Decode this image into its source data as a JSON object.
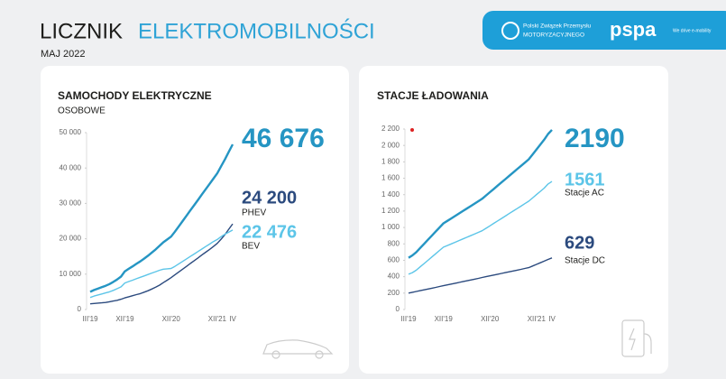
{
  "header": {
    "title_1": "LICZNIK",
    "title_2": "ELEKTROMOBILNOŚCI",
    "subtitle": "MAJ 2022",
    "logo_1_line_1": "Polski Związek Przemysłu",
    "logo_1_line_2": "MOTORYZACYJNEGO",
    "logo_2": "pspa",
    "logo_2_tagline": "We drive e-mobility"
  },
  "chart_data": [
    {
      "type": "line",
      "title": "SAMOCHODY ELEKTRYCZNE",
      "subtitle": "OSOBOWE",
      "categories": [
        "III'19",
        null,
        null,
        null,
        null,
        null,
        null,
        null,
        null,
        "XII'19",
        null,
        null,
        null,
        null,
        null,
        null,
        null,
        null,
        null,
        null,
        null,
        "XII'20",
        null,
        null,
        null,
        null,
        null,
        null,
        null,
        null,
        null,
        null,
        null,
        "XII'21",
        null,
        null,
        null,
        "IV"
      ],
      "ylim": [
        0,
        50000
      ],
      "yticks": [
        0,
        {
          "value": 10000,
          "label": "10 000"
        },
        {
          "value": 20000,
          "label": "20 000"
        },
        {
          "value": 30000,
          "label": "30 000"
        },
        {
          "value": 40000,
          "label": "40 000"
        },
        {
          "value": 50000,
          "label": "50 000"
        }
      ],
      "grid": false,
      "series": [
        {
          "color": "#2595c3",
          "end_label": "46 676",
          "values": [
            5000,
            5500,
            5900,
            6300,
            6700,
            7200,
            7800,
            8500,
            9300,
            10800,
            11500,
            12200,
            12900,
            13600,
            14400,
            15200,
            16100,
            17000,
            18000,
            19000,
            19800,
            20600,
            22000,
            23500,
            25000,
            26500,
            28000,
            29500,
            31000,
            32500,
            34000,
            35500,
            37000,
            38500,
            40500,
            42500,
            44600,
            46676
          ]
        },
        {
          "name": "PHEV",
          "color": "#2b4a7e",
          "end_label": "24 200",
          "values": [
            1600,
            1700,
            1800,
            1900,
            2000,
            2200,
            2400,
            2600,
            2900,
            3300,
            3600,
            3900,
            4200,
            4500,
            4900,
            5300,
            5800,
            6300,
            6900,
            7600,
            8300,
            9000,
            9800,
            10600,
            11400,
            12200,
            13000,
            13800,
            14600,
            15400,
            16200,
            17000,
            17800,
            18700,
            19900,
            21200,
            22700,
            24200
          ]
        },
        {
          "name": "BEV",
          "color": "#5cc5e8",
          "end_label": "22 476",
          "values": [
            3400,
            3800,
            4100,
            4400,
            4700,
            5000,
            5400,
            5900,
            6400,
            7500,
            7900,
            8300,
            8700,
            9100,
            9500,
            9900,
            10300,
            10700,
            11100,
            11400,
            11500,
            11600,
            12200,
            12900,
            13600,
            14300,
            15000,
            15700,
            16400,
            17100,
            17800,
            18500,
            19200,
            19800,
            20600,
            21300,
            21900,
            22476
          ]
        }
      ]
    },
    {
      "type": "line",
      "title": "STACJE ŁADOWANIA",
      "categories": [
        "III'19",
        null,
        null,
        null,
        null,
        null,
        null,
        null,
        null,
        "XII'19",
        null,
        null,
        null,
        null,
        null,
        null,
        null,
        null,
        null,
        null,
        null,
        "XII'20",
        null,
        null,
        null,
        null,
        null,
        null,
        null,
        null,
        null,
        null,
        null,
        "XII'21",
        null,
        null,
        null,
        "IV"
      ],
      "ylim": [
        0,
        2200
      ],
      "yticks": [
        0,
        200,
        400,
        600,
        800,
        {
          "value": 1000,
          "label": "1 000"
        },
        {
          "value": 1200,
          "label": "1 200"
        },
        {
          "value": 1400,
          "label": "1 400"
        },
        {
          "value": 1600,
          "label": "1 600"
        },
        {
          "value": 1800,
          "label": "1 800"
        },
        {
          "value": 2000,
          "label": "2 000"
        },
        {
          "value": 2200,
          "label": "2 200"
        }
      ],
      "grid": false,
      "series": [
        {
          "color": "#2595c3",
          "end_label": "2190",
          "values": [
            630,
            660,
            700,
            750,
            800,
            850,
            900,
            950,
            1000,
            1050,
            1080,
            1110,
            1140,
            1170,
            1200,
            1230,
            1260,
            1290,
            1320,
            1350,
            1390,
            1430,
            1470,
            1510,
            1550,
            1590,
            1630,
            1670,
            1710,
            1750,
            1790,
            1830,
            1890,
            1950,
            2010,
            2070,
            2140,
            2190
          ]
        },
        {
          "name": "Stacje AC",
          "color": "#5cc5e8",
          "end_label": "1561",
          "values": [
            430,
            450,
            480,
            520,
            560,
            600,
            640,
            680,
            720,
            760,
            780,
            800,
            820,
            840,
            860,
            880,
            900,
            920,
            940,
            960,
            990,
            1020,
            1050,
            1080,
            1110,
            1140,
            1170,
            1200,
            1230,
            1260,
            1290,
            1320,
            1360,
            1400,
            1440,
            1480,
            1530,
            1561
          ]
        },
        {
          "name": "Stacje DC",
          "color": "#2b4a7e",
          "end_label": "629",
          "values": [
            200,
            210,
            220,
            230,
            240,
            250,
            260,
            270,
            280,
            290,
            300,
            310,
            320,
            330,
            340,
            350,
            360,
            370,
            380,
            390,
            400,
            410,
            420,
            430,
            440,
            450,
            460,
            470,
            480,
            490,
            500,
            510,
            530,
            550,
            570,
            590,
            610,
            629
          ]
        }
      ]
    }
  ]
}
